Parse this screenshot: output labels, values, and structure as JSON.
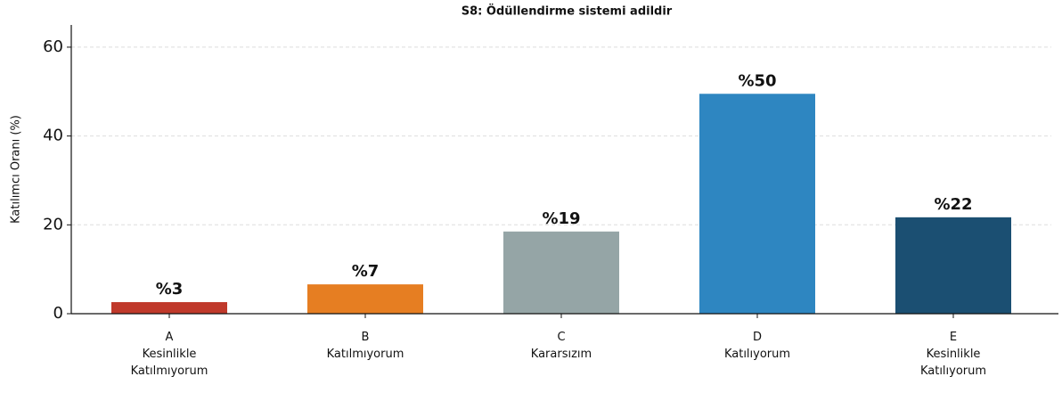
{
  "chart_data": {
    "type": "bar",
    "title": "S8: Ödüllendirme sistemi adildir",
    "ylabel": "Katılımcı Oranı (%)",
    "categories": [
      [
        "A",
        "Kesinlikle",
        "Katılmıyorum"
      ],
      [
        "B",
        "Katılmıyorum"
      ],
      [
        "C",
        "Kararsızım"
      ],
      [
        "D",
        "Katılıyorum"
      ],
      [
        "E",
        "Kesinlikle",
        "Katılıyorum"
      ]
    ],
    "values": [
      2.6,
      6.6,
      18.5,
      49.5,
      21.7
    ],
    "value_labels": [
      "%3",
      "%7",
      "%19",
      "%50",
      "%22"
    ],
    "colors": [
      "#c0392b",
      "#e67e22",
      "#95a5a6",
      "#2e86c1",
      "#1b4f72"
    ],
    "ylim": [
      0,
      65
    ],
    "yticks": [
      0,
      20,
      40,
      60
    ],
    "grid": true
  }
}
